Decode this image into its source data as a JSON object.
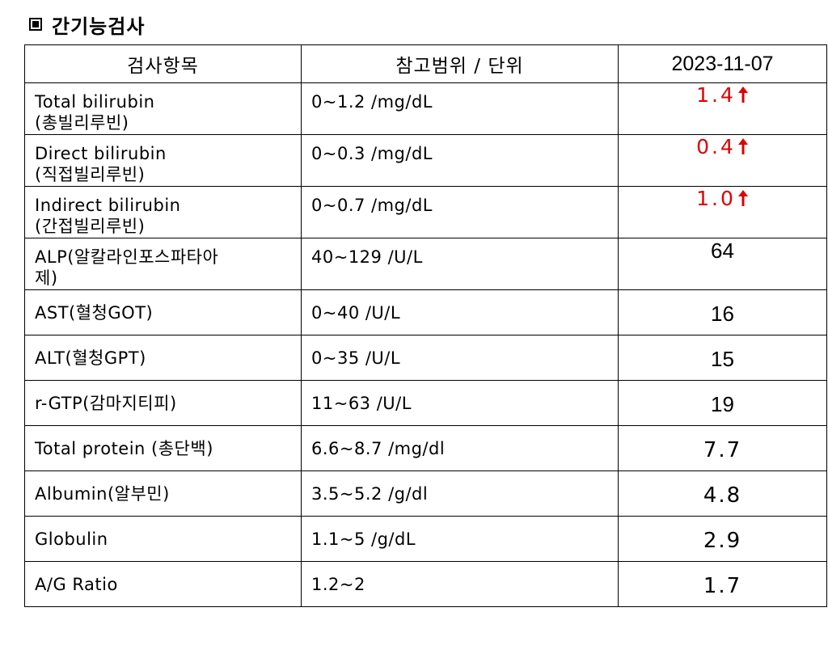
{
  "title": "간기능검사",
  "table": {
    "headers": [
      "검사항목",
      "참고범위 / 단위",
      "2023-11-07"
    ],
    "rows": [
      {
        "name_line1": "Total bilirubin",
        "name_line2": "(총빌리루빈)",
        "range": "0~1.2 /mg/dL",
        "value": "1.4",
        "flag": "high"
      },
      {
        "name_line1": "Direct bilirubin",
        "name_line2": "(직접빌리루빈)",
        "range": "0~0.3 /mg/dL",
        "value": "0.4",
        "flag": "high"
      },
      {
        "name_line1": "Indirect bilirubin",
        "name_line2": "(간접빌리루빈)",
        "range": "0~0.7 /mg/dL",
        "value": "1.0",
        "flag": "high"
      },
      {
        "name_line1": "ALP(알칼라인포스파타아",
        "name_line2": "제)",
        "range": "40~129 /U/L",
        "value": "64",
        "flag": "normal"
      },
      {
        "name": "AST(혈청GOT)",
        "range": "0~40 /U/L",
        "value": "16",
        "flag": "normal"
      },
      {
        "name": "ALT(혈청GPT)",
        "range": "0~35 /U/L",
        "value": "15",
        "flag": "normal"
      },
      {
        "name": "r-GTP(감마지티피)",
        "range": "11~63 /U/L",
        "value": "19",
        "flag": "normal"
      },
      {
        "name": "Total protein (총단백)",
        "range": "6.6~8.7 /mg/dl",
        "value": "7.7",
        "flag": "normal"
      },
      {
        "name": "Albumin(알부민)",
        "range": "3.5~5.2 /g/dl",
        "value": "4.8",
        "flag": "normal"
      },
      {
        "name": "Globulin",
        "range": "1.1~5 /g/dL",
        "value": "2.9",
        "flag": "normal"
      },
      {
        "name": "A/G Ratio",
        "range": "1.2~2",
        "value": "1.7",
        "flag": "normal"
      }
    ]
  },
  "colors": {
    "abnormal": "#e00000",
    "text": "#000000",
    "border": "#000000"
  },
  "icons": {
    "title": "square-bullet-icon",
    "high_flag": "arrow-up-icon"
  }
}
